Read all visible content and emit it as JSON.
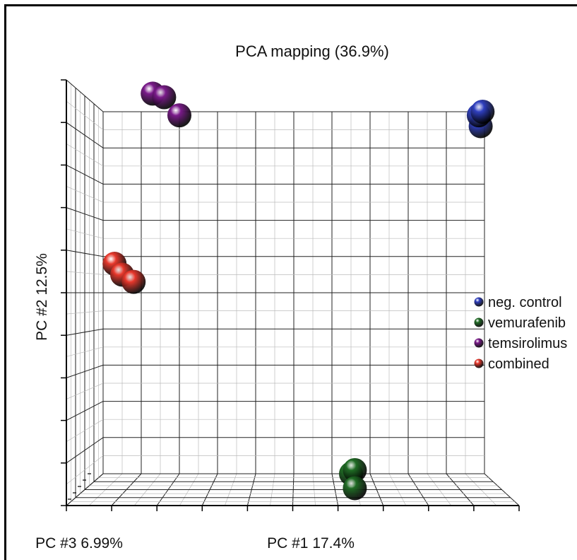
{
  "chart_data": {
    "type": "scatter",
    "title": "PCA mapping (36.9%)",
    "xlabel": "PC #1 17.4%",
    "ylabel": "PC #2 12.5%",
    "zlabel": "PC #3 6.99%",
    "projection": "3d-perspective",
    "grid": true,
    "legend": "right",
    "colors": {
      "neg_control": "#2f3fbf",
      "vemurafenib": "#1f6b24",
      "temsirolimus": "#7a1a8a",
      "combined": "#e8382c"
    },
    "series": [
      {
        "name": "neg. control",
        "color": "#2f3fbf",
        "points": [
          {
            "x": 0.99,
            "y": 0.96,
            "z": 0.0
          },
          {
            "x": 0.985,
            "y": 0.99,
            "z": 0.0
          },
          {
            "x": 0.995,
            "y": 1.0,
            "z": 0.0
          }
        ]
      },
      {
        "name": "vemurafenib",
        "color": "#1f6b24",
        "points": [
          {
            "x": 0.65,
            "y": 0.0,
            "z": 0.0
          },
          {
            "x": 0.66,
            "y": 0.01,
            "z": 0.0
          },
          {
            "x": 0.66,
            "y": -0.04,
            "z": 0.0
          }
        ]
      },
      {
        "name": "temsirolimus",
        "color": "#7a1a8a",
        "points": [
          {
            "x": 0.13,
            "y": 1.05,
            "z": 0.0
          },
          {
            "x": 0.16,
            "y": 1.04,
            "z": 0.0
          },
          {
            "x": 0.2,
            "y": 0.99,
            "z": 0.0
          }
        ]
      },
      {
        "name": "combined",
        "color": "#e8382c",
        "points": [
          {
            "x": 0.03,
            "y": 0.58,
            "z": 0.0
          },
          {
            "x": 0.05,
            "y": 0.55,
            "z": 0.0
          },
          {
            "x": 0.08,
            "y": 0.53,
            "z": 0.0
          }
        ]
      }
    ]
  }
}
